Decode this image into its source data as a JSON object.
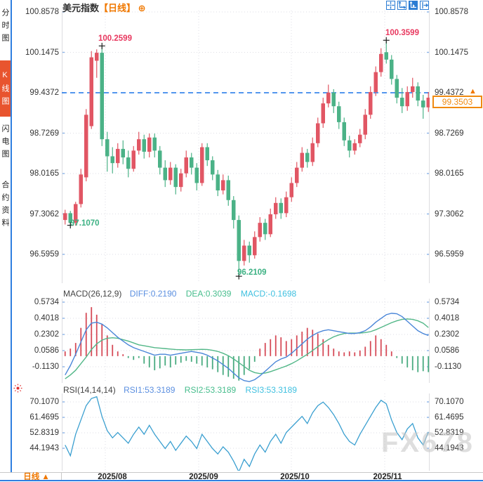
{
  "sidebar": {
    "tabs": [
      {
        "label": "分时图",
        "active": false
      },
      {
        "label": "K线图",
        "active": true
      },
      {
        "label": "闪电图",
        "active": false
      },
      {
        "label": "合约资料",
        "active": false
      }
    ]
  },
  "header": {
    "title": "美元指数",
    "period_tag": "【日线】",
    "zoom_icon": "⊕",
    "toolbar_icons": [
      "crosshair",
      "axis-scale",
      "axis-scale-active",
      "pan-right"
    ]
  },
  "main_chart": {
    "current_price": "99.3503",
    "price_arrow": "▲",
    "annotations": {
      "high1": "100.2599",
      "high2": "100.3599",
      "low1": "97.1070",
      "low2": "96.2109"
    }
  },
  "macd_header": {
    "title": "MACD(26,12,9)",
    "diff": "DIFF:0.2190",
    "dea": "DEA:0.3039",
    "macd": "MACD:-0.1698"
  },
  "rsi_header": {
    "title": "RSI(14,14,14)",
    "rsi1": "RSI1:53.3189",
    "rsi2": "RSI2:53.3189",
    "rsi3": "RSI3:53.3189"
  },
  "footer": {
    "period": "日线 ▲"
  },
  "watermark": "FX678",
  "colors": {
    "up": "#e15664",
    "down": "#4bb287",
    "annotation_up": "#e8385f",
    "annotation_down": "#3cb183",
    "dashed_line": "#1a73e8",
    "accent_orange": "#f07800",
    "accent_blue": "#2b7cd3",
    "diff_line": "#4a86d8",
    "dea_line": "#52b788",
    "rsi_line": "#3a9fd0",
    "hist_up": "#d64b58",
    "hist_down": "#49ab80",
    "grid": "#dedee4",
    "tick_blue": "#8ab4e8",
    "watermark": "#c9c9c9"
  },
  "chart_data": [
    {
      "type": "candlestick",
      "title": "美元指数 日线",
      "y_ticks": [
        "100.8578",
        "100.1475",
        "99.4372",
        "98.7269",
        "98.0165",
        "97.3062",
        "96.5959"
      ],
      "y_ticks_both_sides": true,
      "x_ticks": [
        "2025/08",
        "2025/09",
        "2025/10",
        "2025/11"
      ],
      "dashed_level": 99.4372,
      "last_price": 99.3503,
      "ylim": [
        96.4,
        100.9
      ],
      "ohlc": [
        [
          97.2,
          97.38,
          97.12,
          97.32
        ],
        [
          97.32,
          97.36,
          97.107,
          97.15
        ],
        [
          97.15,
          97.52,
          97.1,
          97.48
        ],
        [
          97.48,
          98.1,
          97.42,
          98.0
        ],
        [
          97.95,
          99.15,
          97.88,
          99.05
        ],
        [
          98.85,
          100.17,
          98.8,
          100.06
        ],
        [
          100.0,
          100.2,
          99.7,
          100.14
        ],
        [
          100.14,
          100.2599,
          98.5,
          98.62
        ],
        [
          98.62,
          98.75,
          98.05,
          98.32
        ],
        [
          98.32,
          98.48,
          98.02,
          98.2
        ],
        [
          98.2,
          98.55,
          98.12,
          98.45
        ],
        [
          98.45,
          98.6,
          98.18,
          98.3
        ],
        [
          98.3,
          98.42,
          97.95,
          98.1
        ],
        [
          98.1,
          98.5,
          98.05,
          98.42
        ],
        [
          98.42,
          98.75,
          98.35,
          98.62
        ],
        [
          98.62,
          98.7,
          98.28,
          98.4
        ],
        [
          98.4,
          98.72,
          98.3,
          98.65
        ],
        [
          98.65,
          98.72,
          98.3,
          98.42
        ],
        [
          98.42,
          98.5,
          98.0,
          98.12
        ],
        [
          98.12,
          98.25,
          97.78,
          97.9
        ],
        [
          97.9,
          98.22,
          97.82,
          98.12
        ],
        [
          98.12,
          98.18,
          97.65,
          97.78
        ],
        [
          97.78,
          98.1,
          97.7,
          98.02
        ],
        [
          98.02,
          98.42,
          97.95,
          98.3
        ],
        [
          98.3,
          98.38,
          98.0,
          98.12
        ],
        [
          98.12,
          98.2,
          97.72,
          97.85
        ],
        [
          97.85,
          98.55,
          97.8,
          98.48
        ],
        [
          98.48,
          98.55,
          98.15,
          98.25
        ],
        [
          98.25,
          98.32,
          97.9,
          98.0
        ],
        [
          98.0,
          98.08,
          97.62,
          97.72
        ],
        [
          97.72,
          98.0,
          97.65,
          97.9
        ],
        [
          97.9,
          97.98,
          97.45,
          97.55
        ],
        [
          97.55,
          97.62,
          97.05,
          97.2
        ],
        [
          97.2,
          97.28,
          96.2109,
          96.48
        ],
        [
          96.48,
          96.85,
          96.4,
          96.75
        ],
        [
          96.75,
          96.82,
          96.45,
          96.58
        ],
        [
          96.58,
          97.0,
          96.52,
          96.9
        ],
        [
          96.9,
          97.25,
          96.82,
          97.15
        ],
        [
          97.15,
          97.22,
          96.85,
          96.95
        ],
        [
          96.95,
          97.4,
          96.9,
          97.3
        ],
        [
          97.3,
          97.6,
          97.22,
          97.5
        ],
        [
          97.5,
          97.58,
          97.22,
          97.32
        ],
        [
          97.32,
          97.7,
          97.25,
          97.6
        ],
        [
          97.6,
          97.95,
          97.52,
          97.85
        ],
        [
          97.85,
          98.22,
          97.78,
          98.12
        ],
        [
          98.12,
          98.48,
          98.05,
          98.38
        ],
        [
          98.38,
          98.45,
          98.12,
          98.22
        ],
        [
          98.22,
          98.65,
          98.15,
          98.55
        ],
        [
          98.55,
          99.0,
          98.48,
          98.9
        ],
        [
          98.9,
          99.35,
          98.82,
          99.25
        ],
        [
          99.25,
          99.58,
          99.18,
          99.44
        ],
        [
          99.44,
          99.5,
          99.08,
          99.2
        ],
        [
          99.2,
          99.28,
          98.8,
          98.92
        ],
        [
          98.92,
          99.0,
          98.5,
          98.6
        ],
        [
          98.6,
          98.68,
          98.3,
          98.42
        ],
        [
          98.42,
          98.62,
          98.35,
          98.55
        ],
        [
          98.55,
          98.8,
          98.48,
          98.7
        ],
        [
          98.7,
          99.15,
          98.62,
          99.05
        ],
        [
          99.05,
          99.55,
          98.98,
          99.45
        ],
        [
          99.45,
          99.9,
          99.38,
          99.8
        ],
        [
          99.8,
          100.22,
          99.72,
          100.12
        ],
        [
          100.15,
          100.3599,
          99.95,
          100.02
        ],
        [
          100.02,
          100.1,
          99.58,
          99.68
        ],
        [
          99.68,
          99.75,
          99.25,
          99.35
        ],
        [
          99.35,
          99.52,
          99.08,
          99.2
        ],
        [
          99.2,
          99.55,
          99.12,
          99.45
        ],
        [
          99.45,
          99.7,
          99.35,
          99.55
        ],
        [
          99.55,
          99.62,
          99.2,
          99.3
        ],
        [
          99.3,
          99.4,
          98.98,
          99.18
        ],
        [
          99.18,
          99.45,
          99.1,
          99.3503
        ]
      ],
      "markers": [
        {
          "index": 1,
          "at": "low",
          "value": 97.107
        },
        {
          "index": 7,
          "at": "high",
          "value": 100.2599
        },
        {
          "index": 33,
          "at": "low",
          "value": 96.2109
        },
        {
          "index": 61,
          "at": "high",
          "value": 100.3599
        }
      ]
    },
    {
      "type": "bar+line",
      "title": "MACD(26,12,9)",
      "y_ticks": [
        "0.5734",
        "0.4018",
        "0.2302",
        "0.0586",
        "-0.1130"
      ],
      "hist": [
        0.05,
        0.08,
        0.14,
        0.3,
        0.46,
        0.52,
        0.44,
        0.34,
        0.22,
        0.12,
        0.05,
        0.02,
        -0.02,
        -0.04,
        -0.02,
        -0.08,
        -0.12,
        -0.15,
        -0.13,
        -0.1,
        -0.12,
        -0.09,
        -0.07,
        -0.05,
        -0.06,
        -0.08,
        -0.1,
        -0.12,
        -0.14,
        -0.17,
        -0.2,
        -0.22,
        -0.24,
        -0.26,
        -0.2,
        -0.14,
        -0.06,
        0.08,
        0.14,
        0.18,
        0.22,
        0.2,
        0.16,
        0.18,
        0.22,
        0.26,
        0.3,
        0.28,
        0.24,
        0.18,
        0.12,
        0.08,
        0.05,
        0.04,
        0.05,
        0.04,
        0.06,
        0.1,
        0.16,
        0.22,
        0.18,
        0.12,
        0.05,
        -0.02,
        -0.08,
        -0.12,
        -0.15,
        -0.17,
        -0.16,
        -0.1698
      ],
      "diff": [
        -0.2,
        -0.1,
        0.02,
        0.15,
        0.28,
        0.35,
        0.36,
        0.34,
        0.3,
        0.25,
        0.2,
        0.16,
        0.12,
        0.09,
        0.07,
        0.05,
        0.03,
        0.01,
        0.02,
        0.02,
        0.01,
        0.02,
        0.03,
        0.04,
        0.05,
        0.04,
        0.03,
        0.01,
        -0.02,
        -0.05,
        -0.09,
        -0.13,
        -0.18,
        -0.23,
        -0.26,
        -0.27,
        -0.25,
        -0.21,
        -0.16,
        -0.11,
        -0.06,
        -0.03,
        -0.01,
        0.03,
        0.08,
        0.13,
        0.18,
        0.22,
        0.25,
        0.27,
        0.28,
        0.27,
        0.26,
        0.25,
        0.24,
        0.24,
        0.25,
        0.27,
        0.31,
        0.36,
        0.4,
        0.44,
        0.455,
        0.45,
        0.42,
        0.37,
        0.32,
        0.27,
        0.24,
        0.219
      ],
      "dea": [
        -0.24,
        -0.2,
        -0.15,
        -0.08,
        -0.01,
        0.07,
        0.13,
        0.17,
        0.19,
        0.195,
        0.19,
        0.175,
        0.16,
        0.14,
        0.12,
        0.11,
        0.1,
        0.09,
        0.085,
        0.08,
        0.075,
        0.07,
        0.068,
        0.066,
        0.068,
        0.07,
        0.072,
        0.07,
        0.062,
        0.05,
        0.03,
        0.005,
        -0.03,
        -0.07,
        -0.11,
        -0.15,
        -0.175,
        -0.185,
        -0.18,
        -0.165,
        -0.145,
        -0.125,
        -0.105,
        -0.08,
        -0.05,
        -0.015,
        0.02,
        0.06,
        0.1,
        0.14,
        0.175,
        0.205,
        0.225,
        0.24,
        0.245,
        0.245,
        0.245,
        0.25,
        0.26,
        0.28,
        0.305,
        0.33,
        0.355,
        0.375,
        0.39,
        0.395,
        0.39,
        0.375,
        0.35,
        0.3039
      ]
    },
    {
      "type": "line",
      "title": "RSI(14,14,14)",
      "y_ticks": [
        "70.1070",
        "61.4695",
        "52.8319",
        "44.1943"
      ],
      "values": [
        46,
        40,
        52,
        60,
        68,
        72,
        73,
        62,
        54,
        50,
        53,
        50,
        47,
        52,
        56,
        52,
        57,
        52,
        48,
        44,
        48,
        43,
        47,
        51,
        48,
        44,
        52,
        48,
        44,
        41,
        45,
        42,
        37,
        31,
        38,
        34,
        41,
        46,
        42,
        48,
        52,
        47,
        53,
        56,
        59,
        62,
        58,
        64,
        68,
        70,
        67,
        63,
        58,
        52,
        48,
        46,
        52,
        57,
        62,
        67,
        71,
        69,
        60,
        53,
        49,
        55,
        58,
        50,
        46,
        53.3
      ]
    }
  ]
}
